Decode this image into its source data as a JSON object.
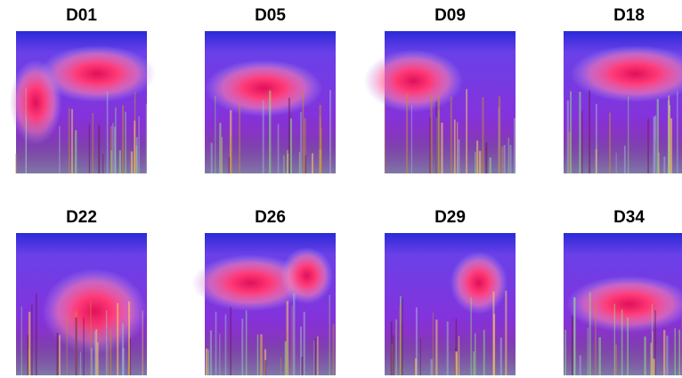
{
  "panels": [
    {
      "title": "D01"
    },
    {
      "title": "D05"
    },
    {
      "title": "D09"
    },
    {
      "title": "D18"
    },
    {
      "title": "D22"
    },
    {
      "title": "D26"
    },
    {
      "title": "D29"
    },
    {
      "title": "D34"
    }
  ]
}
